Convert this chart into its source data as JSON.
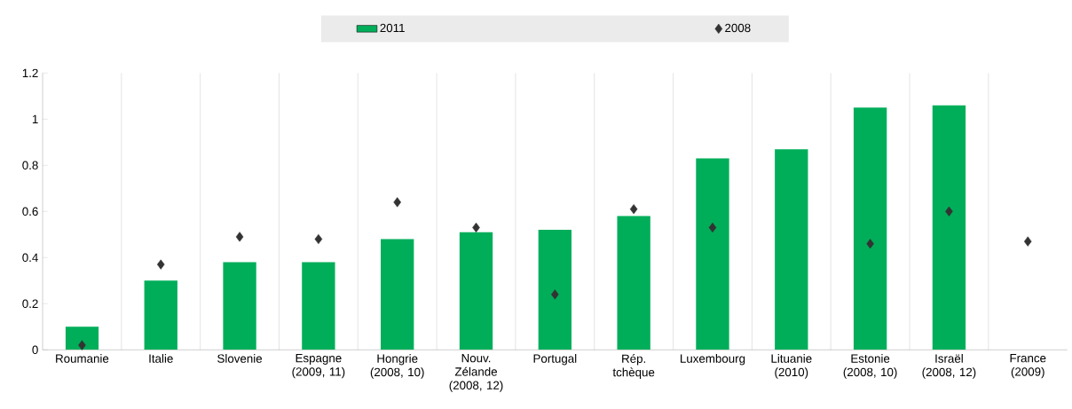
{
  "chart_data": {
    "type": "bar",
    "categories": [
      "Roumanie",
      "Italie",
      "Slovenie",
      "Espagne (2009, 11)",
      "Hongrie (2008, 10)",
      "Nouv. Zélande (2008, 12)",
      "Portugal",
      "Rép. tchèque",
      "Luxembourg",
      "Lituanie (2010)",
      "Estonie (2008, 10)",
      "Israël (2008, 12)",
      "France (2009)"
    ],
    "series": [
      {
        "name": "2011",
        "color": "#00ae5a",
        "values": [
          0.1,
          0.3,
          0.38,
          0.38,
          0.48,
          0.51,
          0.52,
          0.58,
          0.83,
          0.87,
          1.05,
          1.06,
          null
        ]
      },
      {
        "name": "2008",
        "type": "scatter",
        "marker": "diamond",
        "color": "#333333",
        "values": [
          0.02,
          0.37,
          0.49,
          0.48,
          0.64,
          0.53,
          0.24,
          0.61,
          0.53,
          null,
          0.46,
          0.6,
          0.47
        ]
      }
    ],
    "ylim": [
      0,
      1.2
    ],
    "yticks": [
      0,
      0.2,
      0.4,
      0.6,
      0.8,
      1,
      1.2
    ],
    "grid": "x",
    "legend": "top"
  }
}
